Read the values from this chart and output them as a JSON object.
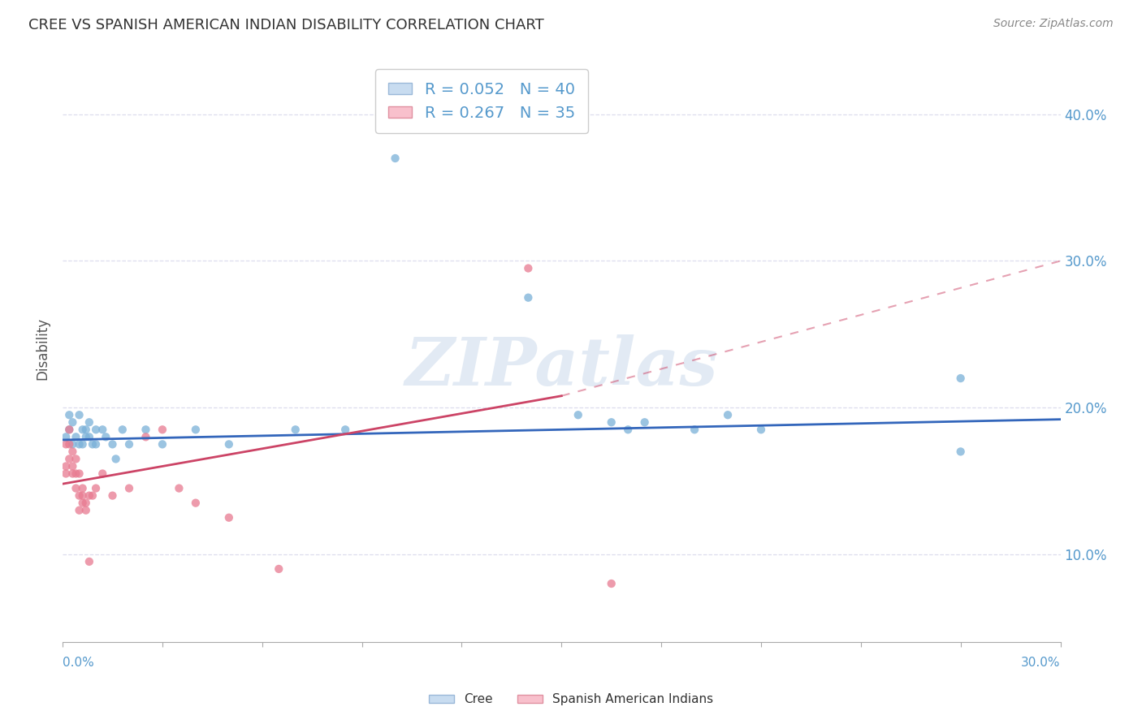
{
  "title": "CREE VS SPANISH AMERICAN INDIAN DISABILITY CORRELATION CHART",
  "source": "Source: ZipAtlas.com",
  "ylabel": "Disability",
  "yticks": [
    0.1,
    0.2,
    0.3,
    0.4
  ],
  "ytick_labels": [
    "10.0%",
    "20.0%",
    "30.0%",
    "40.0%"
  ],
  "xlim": [
    0.0,
    0.3
  ],
  "ylim": [
    0.04,
    0.44
  ],
  "cree_color": "#7ab0d8",
  "spanish_color": "#e87a90",
  "cree_line_color": "#3366bb",
  "spanish_line_color": "#cc4466",
  "watermark": "ZIPatlas",
  "background_color": "#ffffff",
  "grid_color": "#ddddee",
  "axis_color": "#5599cc",
  "cree_points": [
    [
      0.001,
      0.18
    ],
    [
      0.002,
      0.185
    ],
    [
      0.002,
      0.195
    ],
    [
      0.003,
      0.175
    ],
    [
      0.003,
      0.19
    ],
    [
      0.004,
      0.18
    ],
    [
      0.005,
      0.175
    ],
    [
      0.005,
      0.195
    ],
    [
      0.006,
      0.185
    ],
    [
      0.006,
      0.175
    ],
    [
      0.007,
      0.185
    ],
    [
      0.007,
      0.18
    ],
    [
      0.008,
      0.18
    ],
    [
      0.008,
      0.19
    ],
    [
      0.009,
      0.175
    ],
    [
      0.01,
      0.185
    ],
    [
      0.01,
      0.175
    ],
    [
      0.012,
      0.185
    ],
    [
      0.013,
      0.18
    ],
    [
      0.015,
      0.175
    ],
    [
      0.016,
      0.165
    ],
    [
      0.018,
      0.185
    ],
    [
      0.02,
      0.175
    ],
    [
      0.025,
      0.185
    ],
    [
      0.03,
      0.175
    ],
    [
      0.04,
      0.185
    ],
    [
      0.05,
      0.175
    ],
    [
      0.07,
      0.185
    ],
    [
      0.085,
      0.185
    ],
    [
      0.1,
      0.37
    ],
    [
      0.14,
      0.275
    ],
    [
      0.155,
      0.195
    ],
    [
      0.165,
      0.19
    ],
    [
      0.17,
      0.185
    ],
    [
      0.175,
      0.19
    ],
    [
      0.19,
      0.185
    ],
    [
      0.2,
      0.195
    ],
    [
      0.21,
      0.185
    ],
    [
      0.27,
      0.22
    ],
    [
      0.27,
      0.17
    ]
  ],
  "spanish_points": [
    [
      0.001,
      0.175
    ],
    [
      0.001,
      0.16
    ],
    [
      0.001,
      0.155
    ],
    [
      0.002,
      0.165
    ],
    [
      0.002,
      0.175
    ],
    [
      0.002,
      0.185
    ],
    [
      0.003,
      0.155
    ],
    [
      0.003,
      0.16
    ],
    [
      0.003,
      0.17
    ],
    [
      0.004,
      0.155
    ],
    [
      0.004,
      0.165
    ],
    [
      0.004,
      0.145
    ],
    [
      0.005,
      0.155
    ],
    [
      0.005,
      0.14
    ],
    [
      0.005,
      0.13
    ],
    [
      0.006,
      0.14
    ],
    [
      0.006,
      0.145
    ],
    [
      0.006,
      0.135
    ],
    [
      0.007,
      0.135
    ],
    [
      0.007,
      0.13
    ],
    [
      0.008,
      0.14
    ],
    [
      0.008,
      0.095
    ],
    [
      0.009,
      0.14
    ],
    [
      0.01,
      0.145
    ],
    [
      0.012,
      0.155
    ],
    [
      0.015,
      0.14
    ],
    [
      0.02,
      0.145
    ],
    [
      0.025,
      0.18
    ],
    [
      0.03,
      0.185
    ],
    [
      0.035,
      0.145
    ],
    [
      0.04,
      0.135
    ],
    [
      0.05,
      0.125
    ],
    [
      0.065,
      0.09
    ],
    [
      0.14,
      0.295
    ],
    [
      0.165,
      0.08
    ]
  ],
  "cree_line": [
    0.0,
    0.178,
    0.3,
    0.192
  ],
  "spanish_line_solid": [
    0.0,
    0.148,
    0.15,
    0.208
  ],
  "spanish_line_dashed": [
    0.15,
    0.208,
    0.3,
    0.3
  ]
}
